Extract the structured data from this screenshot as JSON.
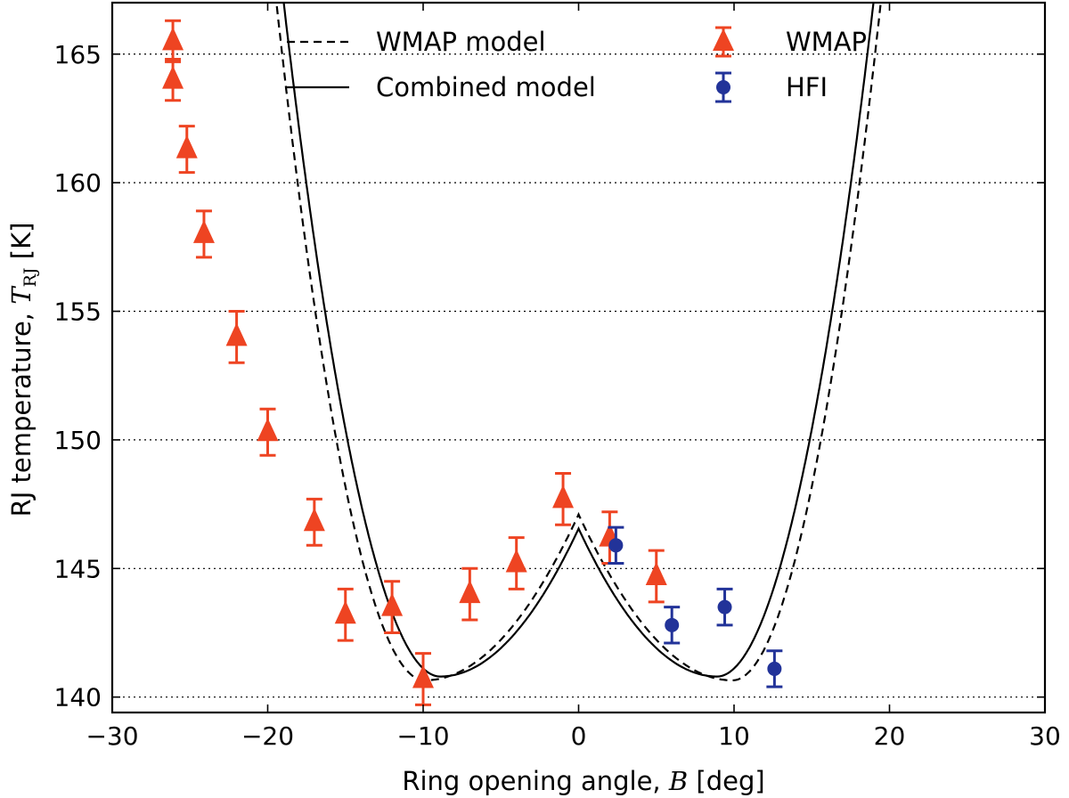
{
  "chart_data": {
    "type": "scatter",
    "xlabel": "Ring opening angle, B [deg]",
    "xlabel_prefix": "Ring opening angle, ",
    "xlabel_var": "B",
    "xlabel_suffix": " [deg]",
    "ylabel": "RJ temperature, T_RJ [K]",
    "ylabel_prefix": "RJ temperature, ",
    "ylabel_var": "T",
    "ylabel_sub": "RJ",
    "ylabel_suffix": " [K]",
    "xlim": [
      -30,
      30
    ],
    "ylim": [
      139.4,
      167
    ],
    "xticks": [
      -30,
      -20,
      -10,
      0,
      10,
      20,
      30
    ],
    "xtick_labels": [
      "−30",
      "−20",
      "−10",
      "0",
      "10",
      "20",
      "30"
    ],
    "yticks": [
      140,
      145,
      150,
      155,
      160,
      165
    ],
    "ytick_labels": [
      "140",
      "145",
      "150",
      "155",
      "160",
      "165"
    ],
    "grid": "horizontal dotted",
    "legend": {
      "placement": "top",
      "entries": [
        {
          "label": "WMAP model",
          "style": "dashed-line"
        },
        {
          "label": "Combined model",
          "style": "solid-line"
        },
        {
          "label": "WMAP",
          "style": "triangle-errorbar"
        },
        {
          "label": "HFI",
          "style": "circle-errorbar"
        }
      ]
    },
    "colors": {
      "wmap": "#ee4422",
      "hfi": "#223399",
      "model": "#000000"
    },
    "series": [
      {
        "name": "WMAP",
        "marker": "triangle",
        "points": [
          {
            "x": -26.1,
            "y": 165.5,
            "err": 0.8
          },
          {
            "x": -26.1,
            "y": 164.0,
            "err": 0.8
          },
          {
            "x": -25.2,
            "y": 161.3,
            "err": 0.9
          },
          {
            "x": -24.1,
            "y": 158.0,
            "err": 0.9
          },
          {
            "x": -22.0,
            "y": 154.0,
            "err": 1.0
          },
          {
            "x": -20.0,
            "y": 150.3,
            "err": 0.9
          },
          {
            "x": -17.0,
            "y": 146.8,
            "err": 0.9
          },
          {
            "x": -15.0,
            "y": 143.2,
            "err": 1.0
          },
          {
            "x": -12.0,
            "y": 143.5,
            "err": 1.0
          },
          {
            "x": -10.0,
            "y": 140.7,
            "err": 1.0
          },
          {
            "x": -7.0,
            "y": 144.0,
            "err": 1.0
          },
          {
            "x": -4.0,
            "y": 145.2,
            "err": 1.0
          },
          {
            "x": -1.0,
            "y": 147.7,
            "err": 1.0
          },
          {
            "x": 2.0,
            "y": 146.2,
            "err": 1.0
          },
          {
            "x": 5.0,
            "y": 144.7,
            "err": 1.0
          }
        ]
      },
      {
        "name": "HFI",
        "marker": "circle",
        "points": [
          {
            "x": 2.4,
            "y": 145.9,
            "err": 0.7
          },
          {
            "x": 6.0,
            "y": 142.8,
            "err": 0.7
          },
          {
            "x": 9.4,
            "y": 143.5,
            "err": 0.7
          },
          {
            "x": 12.6,
            "y": 141.1,
            "err": 0.7
          }
        ]
      },
      {
        "name": "WMAP model",
        "style": "dashed",
        "model": {
          "base": 147.1,
          "drop": 6.45,
          "scale": 9.9,
          "a": 0.85,
          "shift": 0.5
        }
      },
      {
        "name": "Combined model",
        "style": "solid",
        "model": {
          "base": 146.55,
          "drop": 5.75,
          "scale": 8.9,
          "a": 0.64,
          "shift": 0.0
        }
      }
    ]
  }
}
